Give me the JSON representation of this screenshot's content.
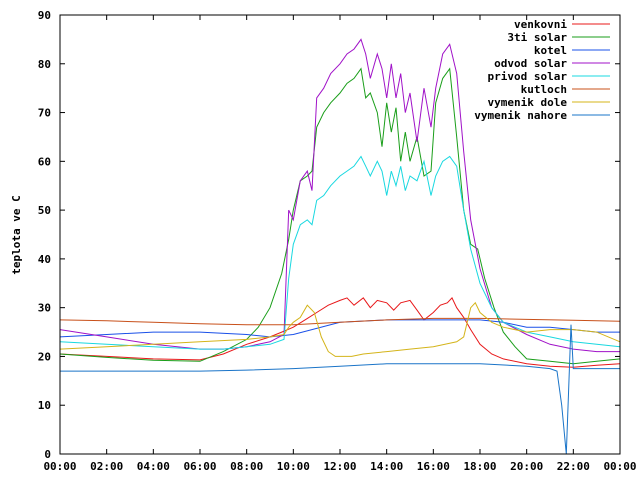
{
  "chart_data": {
    "type": "line",
    "title": "",
    "xlabel": "",
    "ylabel": "teplota ve C",
    "ylim": [
      0,
      90
    ],
    "xlim": [
      0,
      24
    ],
    "grid": false,
    "legend_position": "top-right",
    "yticks": [
      0,
      10,
      20,
      30,
      40,
      50,
      60,
      70,
      80,
      90
    ],
    "ytick_labels": [
      "0",
      "10",
      "20",
      "30",
      "40",
      "50",
      "60",
      "70",
      "80",
      "90"
    ],
    "xticks": [
      0,
      2,
      4,
      6,
      8,
      10,
      12,
      14,
      16,
      18,
      20,
      22,
      24
    ],
    "xtick_labels": [
      "00:00",
      "02:00",
      "04:00",
      "06:00",
      "08:00",
      "10:00",
      "12:00",
      "14:00",
      "16:00",
      "18:00",
      "20:00",
      "22:00",
      "00:00"
    ],
    "series": [
      {
        "name": "venkovni",
        "color": "#e8181a",
        "x": [
          0,
          2,
          4,
          6,
          7,
          8,
          9,
          9.5,
          10,
          10.5,
          11,
          11.5,
          12,
          12.3,
          12.6,
          13,
          13.3,
          13.6,
          14,
          14.3,
          14.6,
          15,
          15.3,
          15.6,
          16,
          16.3,
          16.6,
          16.8,
          17,
          17.3,
          17.6,
          18,
          18.5,
          19,
          20,
          21,
          22,
          23,
          24
        ],
        "y": [
          20.5,
          20.0,
          19.5,
          19.3,
          20.5,
          22.5,
          24.0,
          25.0,
          26.0,
          27.5,
          29.0,
          30.5,
          31.5,
          32.0,
          30.5,
          32.0,
          30.0,
          31.5,
          31.0,
          29.5,
          31.0,
          31.5,
          29.5,
          27.5,
          29.0,
          30.5,
          31.0,
          32.0,
          30.0,
          28.0,
          25.5,
          22.5,
          20.5,
          19.5,
          18.5,
          18.0,
          17.8,
          18.2,
          18.5
        ]
      },
      {
        "name": "3ti solar",
        "color": "#1a9e1a",
        "x": [
          0,
          2,
          4,
          6,
          7,
          8,
          8.5,
          9,
          9.5,
          9.8,
          10,
          10.3,
          10.6,
          10.8,
          11,
          11.3,
          11.6,
          12,
          12.3,
          12.6,
          12.9,
          13.1,
          13.3,
          13.6,
          13.8,
          14,
          14.2,
          14.4,
          14.6,
          14.8,
          15,
          15.3,
          15.6,
          15.9,
          16.1,
          16.4,
          16.7,
          17,
          17.3,
          17.6,
          17.9,
          18.2,
          18.6,
          19,
          19.5,
          20,
          21,
          22,
          23,
          24
        ],
        "y": [
          20.5,
          19.8,
          19.2,
          19.0,
          21.0,
          23.5,
          26.0,
          30.0,
          37.0,
          44.0,
          50.0,
          56.0,
          57.0,
          58.0,
          67.0,
          70.0,
          72.0,
          74.0,
          76.0,
          77.0,
          79.0,
          73.0,
          74.0,
          70.0,
          63.0,
          72.0,
          66.0,
          71.0,
          60.0,
          66.0,
          60.0,
          65.0,
          57.0,
          58.0,
          72.0,
          77.0,
          79.0,
          65.0,
          50.0,
          43.0,
          42.0,
          36.0,
          30.0,
          25.0,
          22.0,
          19.5,
          19.0,
          18.5,
          19.0,
          19.5
        ]
      },
      {
        "name": "kotel",
        "color": "#1a50e8",
        "x": [
          0,
          2,
          4,
          6,
          8,
          9,
          10,
          12,
          14,
          16,
          18,
          19,
          20,
          21,
          22,
          23,
          24
        ],
        "y": [
          24.0,
          24.5,
          25.0,
          25.0,
          24.5,
          24.0,
          24.5,
          27.0,
          27.5,
          27.5,
          27.5,
          27.0,
          26.0,
          26.0,
          25.5,
          25.0,
          25.0
        ]
      },
      {
        "name": "odvod solar",
        "color": "#a012c8",
        "x": [
          0,
          2,
          4,
          6,
          7,
          8,
          9,
          9.6,
          9.8,
          10,
          10.3,
          10.6,
          10.8,
          11,
          11.3,
          11.6,
          12,
          12.3,
          12.6,
          12.9,
          13.1,
          13.3,
          13.6,
          13.8,
          14,
          14.2,
          14.4,
          14.6,
          14.8,
          15,
          15.3,
          15.6,
          15.9,
          16.1,
          16.4,
          16.7,
          17,
          17.3,
          17.6,
          18,
          18.5,
          19,
          20,
          21,
          22,
          23,
          24
        ],
        "y": [
          25.5,
          24.0,
          22.5,
          21.5,
          21.5,
          22.0,
          23.0,
          24.5,
          50.0,
          48.0,
          56.0,
          58.0,
          54.0,
          73.0,
          75.0,
          78.0,
          80.0,
          82.0,
          83.0,
          85.0,
          82.0,
          77.0,
          82.0,
          79.0,
          73.0,
          80.0,
          73.0,
          78.0,
          70.0,
          74.0,
          64.0,
          75.0,
          67.0,
          75.0,
          82.0,
          84.0,
          78.0,
          62.0,
          48.0,
          38.0,
          30.0,
          27.0,
          24.5,
          22.5,
          21.5,
          21.0,
          21.0
        ]
      },
      {
        "name": "privod solar",
        "color": "#19d8e0",
        "x": [
          0,
          2,
          4,
          6,
          7,
          8,
          9,
          9.6,
          9.8,
          10,
          10.3,
          10.6,
          10.8,
          11,
          11.3,
          11.6,
          12,
          12.3,
          12.6,
          12.9,
          13.1,
          13.3,
          13.6,
          13.8,
          14,
          14.2,
          14.4,
          14.6,
          14.8,
          15,
          15.3,
          15.6,
          15.9,
          16.1,
          16.4,
          16.7,
          17,
          17.3,
          17.6,
          18,
          18.5,
          19,
          20,
          21,
          22,
          23,
          24
        ],
        "y": [
          23.0,
          22.5,
          22.0,
          21.5,
          21.5,
          22.0,
          22.5,
          23.5,
          36.0,
          43.0,
          47.0,
          48.0,
          47.0,
          52.0,
          53.0,
          55.0,
          57.0,
          58.0,
          59.0,
          61.0,
          59.0,
          57.0,
          60.0,
          58.0,
          53.0,
          58.0,
          55.0,
          59.0,
          54.0,
          57.0,
          56.0,
          60.0,
          53.0,
          57.0,
          60.0,
          61.0,
          59.0,
          50.0,
          42.0,
          35.0,
          30.0,
          27.0,
          25.0,
          24.0,
          23.0,
          22.5,
          22.0
        ]
      },
      {
        "name": "kutloch",
        "color": "#c8501a",
        "x": [
          0,
          2,
          4,
          6,
          8,
          10,
          12,
          14,
          16,
          18,
          20,
          22,
          24
        ],
        "y": [
          27.5,
          27.3,
          27.0,
          26.7,
          26.5,
          26.5,
          27.0,
          27.5,
          27.8,
          27.8,
          27.6,
          27.4,
          27.2
        ]
      },
      {
        "name": "vymenik dole",
        "color": "#d4b41a",
        "x": [
          0,
          2,
          4,
          6,
          8,
          9,
          9.6,
          9.8,
          10,
          10.3,
          10.6,
          10.9,
          11.2,
          11.5,
          11.8,
          12,
          12.5,
          13,
          14,
          15,
          16,
          16.5,
          17,
          17.3,
          17.6,
          17.8,
          18,
          18.5,
          19,
          20,
          21,
          22,
          23,
          24
        ],
        "y": [
          21.5,
          22.0,
          22.5,
          23.0,
          23.5,
          24.0,
          24.5,
          26.0,
          27.0,
          28.0,
          30.5,
          29.0,
          24.0,
          21.0,
          20.0,
          20.0,
          20.0,
          20.5,
          21.0,
          21.5,
          22.0,
          22.5,
          23.0,
          24.0,
          30.0,
          31.0,
          29.0,
          27.0,
          26.0,
          25.0,
          25.5,
          25.5,
          25.0,
          23.0
        ]
      },
      {
        "name": "vymenik nahore",
        "color": "#1a74c8",
        "x": [
          0,
          2,
          4,
          6,
          8,
          10,
          12,
          14,
          16,
          18,
          20,
          21,
          21.3,
          21.5,
          21.7,
          21.9,
          22,
          23,
          24
        ],
        "y": [
          17.0,
          17.0,
          17.0,
          17.0,
          17.2,
          17.5,
          18.0,
          18.5,
          18.5,
          18.5,
          18.0,
          17.5,
          17.0,
          10.0,
          0.0,
          26.5,
          17.5,
          17.5,
          17.5
        ]
      }
    ]
  }
}
